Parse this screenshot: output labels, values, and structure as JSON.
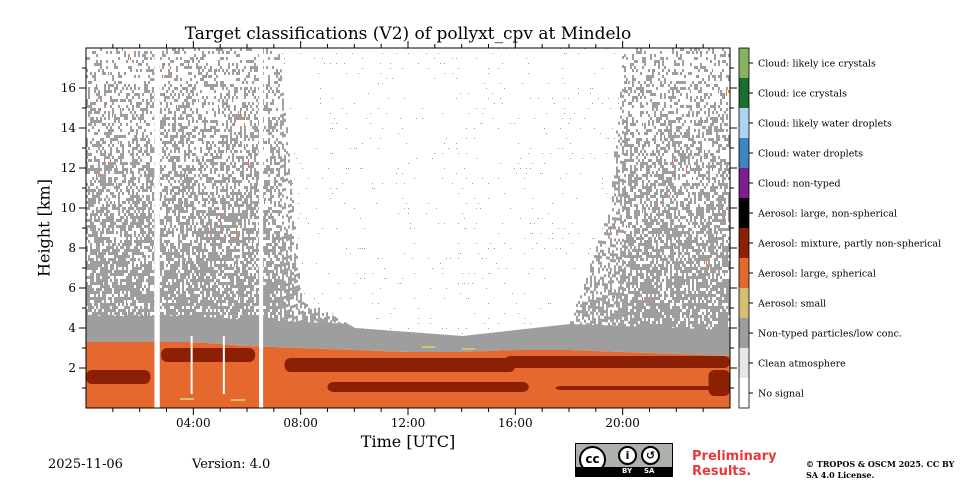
{
  "chart_data": {
    "type": "heatmap",
    "title": "Target classifications (V2) of pollyxt_cpv at Mindelo",
    "xlabel": "Time [UTC]",
    "ylabel": "Height [km]",
    "xlim_hours": [
      0,
      24
    ],
    "ylim_km": [
      0,
      18
    ],
    "x_ticks": [
      {
        "value": 4,
        "label": "04:00"
      },
      {
        "value": 8,
        "label": "08:00"
      },
      {
        "value": 12,
        "label": "12:00"
      },
      {
        "value": 16,
        "label": "16:00"
      },
      {
        "value": 20,
        "label": "20:00"
      }
    ],
    "y_ticks": [
      {
        "value": 2,
        "label": "2"
      },
      {
        "value": 4,
        "label": "4"
      },
      {
        "value": 6,
        "label": "6"
      },
      {
        "value": 8,
        "label": "8"
      },
      {
        "value": 10,
        "label": "10"
      },
      {
        "value": 12,
        "label": "12"
      },
      {
        "value": 14,
        "label": "14"
      },
      {
        "value": 16,
        "label": "16"
      }
    ],
    "classes": [
      {
        "label": "No signal",
        "color": "#ffffff"
      },
      {
        "label": "Clean atmosphere",
        "color": "#e6e6e6"
      },
      {
        "label": "Non-typed particles/low conc.",
        "color": "#9e9e9e"
      },
      {
        "label": "Aerosol: small",
        "color": "#d6bf70"
      },
      {
        "label": "Aerosol: large, spherical",
        "color": "#e5692e"
      },
      {
        "label": "Aerosol: mixture, partly non-spherical",
        "color": "#8c2005"
      },
      {
        "label": "Aerosol: large, non-spherical",
        "color": "#000000"
      },
      {
        "label": "Cloud: non-typed",
        "color": "#7e1e8e"
      },
      {
        "label": "Cloud: water droplets",
        "color": "#3c86c4"
      },
      {
        "label": "Cloud: likely water droplets",
        "color": "#aed4f2"
      },
      {
        "label": "Cloud: ice crystals",
        "color": "#1c6e2e"
      },
      {
        "label": "Cloud: likely ice crystals",
        "color": "#86b25e"
      }
    ],
    "regions": {
      "aerosol_layer_top_km": [
        3.3,
        3.3,
        3.3,
        3.1,
        3.0,
        2.9,
        2.8,
        2.8,
        2.9,
        2.9,
        2.8,
        2.7,
        2.6
      ],
      "aerosol_layer_top_hours": [
        0,
        2,
        4,
        6,
        8,
        10,
        12,
        14,
        16,
        18,
        20,
        22,
        24
      ],
      "no_signal_gaps_hours": [
        [
          2.55,
          2.75
        ],
        [
          6.45,
          6.6
        ]
      ],
      "noise_top_km_by_hour": [
        {
          "h": 0,
          "km": 18
        },
        {
          "h": 7.2,
          "km": 18
        },
        {
          "h": 8.0,
          "km": 5.5
        },
        {
          "h": 10,
          "km": 4.0
        },
        {
          "h": 14,
          "km": 3.6
        },
        {
          "h": 18,
          "km": 4.2
        },
        {
          "h": 19.5,
          "km": 10
        },
        {
          "h": 20.0,
          "km": 18
        },
        {
          "h": 24,
          "km": 18
        }
      ]
    }
  },
  "footer": {
    "date": "2025-11-06",
    "version": "Version: 4.0",
    "preliminary": "Preliminary Results.",
    "copyright": "© TROPOS & OSCM 2025. CC BY SA 4.0 License.",
    "cc_logo": {
      "text": "cc",
      "by": "BY",
      "sa": "SA"
    }
  }
}
